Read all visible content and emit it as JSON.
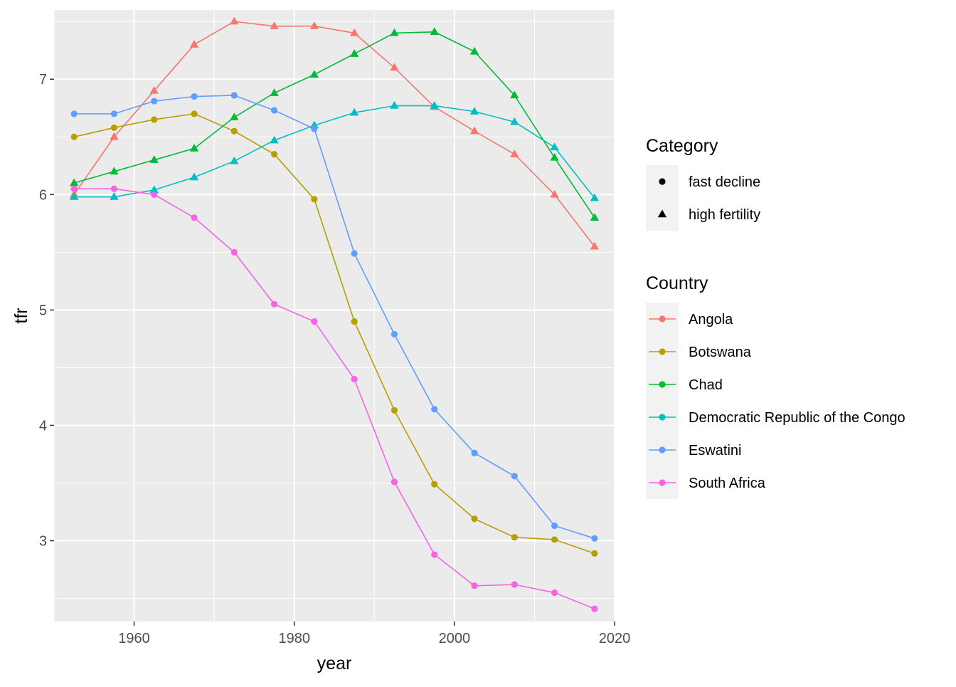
{
  "chart_data": {
    "type": "line",
    "xlabel": "year",
    "ylabel": "tfr",
    "xlim": [
      1950.0,
      2020.0
    ],
    "ylim": [
      2.3,
      7.6
    ],
    "xticks": [
      1960,
      1980,
      2000,
      2020
    ],
    "yticks": [
      3,
      4,
      5,
      6,
      7
    ],
    "grid": true,
    "background": "#ebebeb",
    "legend_position": "right",
    "x": [
      1952.5,
      1957.5,
      1962.5,
      1967.5,
      1972.5,
      1977.5,
      1982.5,
      1987.5,
      1992.5,
      1997.5,
      2002.5,
      2007.5,
      2012.5,
      2017.5
    ],
    "category_legend": {
      "title": "Category",
      "items": [
        {
          "label": "fast decline",
          "shape": "circle"
        },
        {
          "label": "high fertility",
          "shape": "triangle"
        }
      ]
    },
    "series_legend_title": "Country",
    "series": [
      {
        "name": "Angola",
        "color": "#F8766D",
        "shape": "triangle",
        "values": [
          6.0,
          6.5,
          6.9,
          7.3,
          7.5,
          7.46,
          7.46,
          7.4,
          7.1,
          6.76,
          6.55,
          6.35,
          6.0,
          5.55
        ]
      },
      {
        "name": "Botswana",
        "color": "#B79F00",
        "shape": "circle",
        "values": [
          6.5,
          6.58,
          6.65,
          6.7,
          6.55,
          6.35,
          5.96,
          4.9,
          4.13,
          3.49,
          3.19,
          3.03,
          3.01,
          2.89
        ]
      },
      {
        "name": "Chad",
        "color": "#00BA38",
        "shape": "triangle",
        "values": [
          6.1,
          6.2,
          6.3,
          6.4,
          6.67,
          6.88,
          7.04,
          7.22,
          7.4,
          7.41,
          7.24,
          6.86,
          6.32,
          5.8
        ]
      },
      {
        "name": "Democratic Republic of the Congo",
        "color": "#00BFC4",
        "shape": "triangle",
        "values": [
          5.98,
          5.98,
          6.04,
          6.15,
          6.29,
          6.47,
          6.6,
          6.71,
          6.77,
          6.77,
          6.72,
          6.63,
          6.41,
          5.97
        ]
      },
      {
        "name": "Eswatini",
        "color": "#619CFF",
        "shape": "circle",
        "values": [
          6.7,
          6.7,
          6.81,
          6.85,
          6.86,
          6.73,
          6.57,
          5.49,
          4.79,
          4.14,
          3.76,
          3.56,
          3.13,
          3.02
        ]
      },
      {
        "name": "South Africa",
        "color": "#F564E3",
        "shape": "circle",
        "values": [
          6.05,
          6.05,
          6.0,
          5.8,
          5.5,
          5.05,
          4.9,
          4.4,
          3.51,
          2.88,
          2.61,
          2.62,
          2.55,
          2.41
        ]
      }
    ]
  }
}
